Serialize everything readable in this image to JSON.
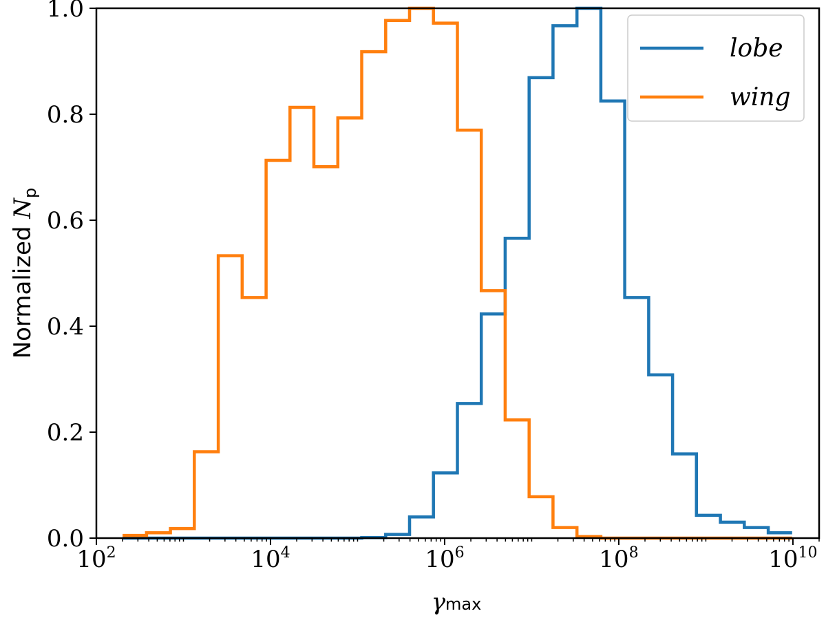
{
  "chart_data": {
    "type": "histogram-step",
    "xscale": "log",
    "xlim": [
      100,
      20000000000
    ],
    "ylim": [
      0,
      1.0
    ],
    "grid": false,
    "legend_position": "top-right",
    "xlabel": {
      "symbol": "γ",
      "subscript": "max"
    },
    "ylabel": {
      "text": "Normalized ",
      "symbol": "N",
      "subscript": "p"
    },
    "x_ticks": [
      {
        "base": "10",
        "exp": "2",
        "value": 100
      },
      {
        "base": "10",
        "exp": "4",
        "value": 10000
      },
      {
        "base": "10",
        "exp": "6",
        "value": 1000000
      },
      {
        "base": "10",
        "exp": "8",
        "value": 100000000
      },
      {
        "base": "10",
        "exp": "10",
        "value": 10000000000
      }
    ],
    "y_ticks": [
      {
        "label": "0.0",
        "value": 0.0
      },
      {
        "label": "0.2",
        "value": 0.2
      },
      {
        "label": "0.4",
        "value": 0.4
      },
      {
        "label": "0.6",
        "value": 0.6
      },
      {
        "label": "0.8",
        "value": 0.8
      },
      {
        "label": "1.0",
        "value": 1.0
      }
    ],
    "bin_edges": [
      200,
      377,
      709,
      1334,
      2512,
      4727,
      8897,
      16745,
      31515,
      59313,
      111630,
      210094,
      395407,
      744175,
      1400559,
      2635903,
      4960897,
      9336606,
      17571745,
      33070718,
      62240893,
      117139807,
      220462017,
      414920528,
      780900009,
      1469665066,
      2765969046,
      5205676008,
      9797293106
    ],
    "series": [
      {
        "name": "wing",
        "color": "#ff7f0e",
        "values": [
          0.005,
          0.01,
          0.018,
          0.163,
          0.533,
          0.454,
          0.713,
          0.813,
          0.701,
          0.793,
          0.918,
          0.977,
          1.0,
          0.972,
          0.77,
          0.467,
          0.223,
          0.078,
          0.02,
          0.003,
          0.0,
          0.0,
          0.0,
          0.0,
          0.0,
          0.0,
          0.0,
          0.0
        ]
      },
      {
        "name": "lobe",
        "color": "#1f77b4",
        "values": [
          0.0,
          0.0,
          0.0,
          0.0,
          0.0,
          0.0,
          0.0,
          0.0,
          0.0,
          0.0,
          0.001,
          0.007,
          0.04,
          0.123,
          0.254,
          0.423,
          0.566,
          0.869,
          0.967,
          1.0,
          0.825,
          0.454,
          0.308,
          0.159,
          0.043,
          0.03,
          0.02,
          0.01
        ]
      }
    ],
    "legend": [
      {
        "label": "lobe",
        "color": "#1f77b4"
      },
      {
        "label": "wing",
        "color": "#ff7f0e"
      }
    ]
  }
}
